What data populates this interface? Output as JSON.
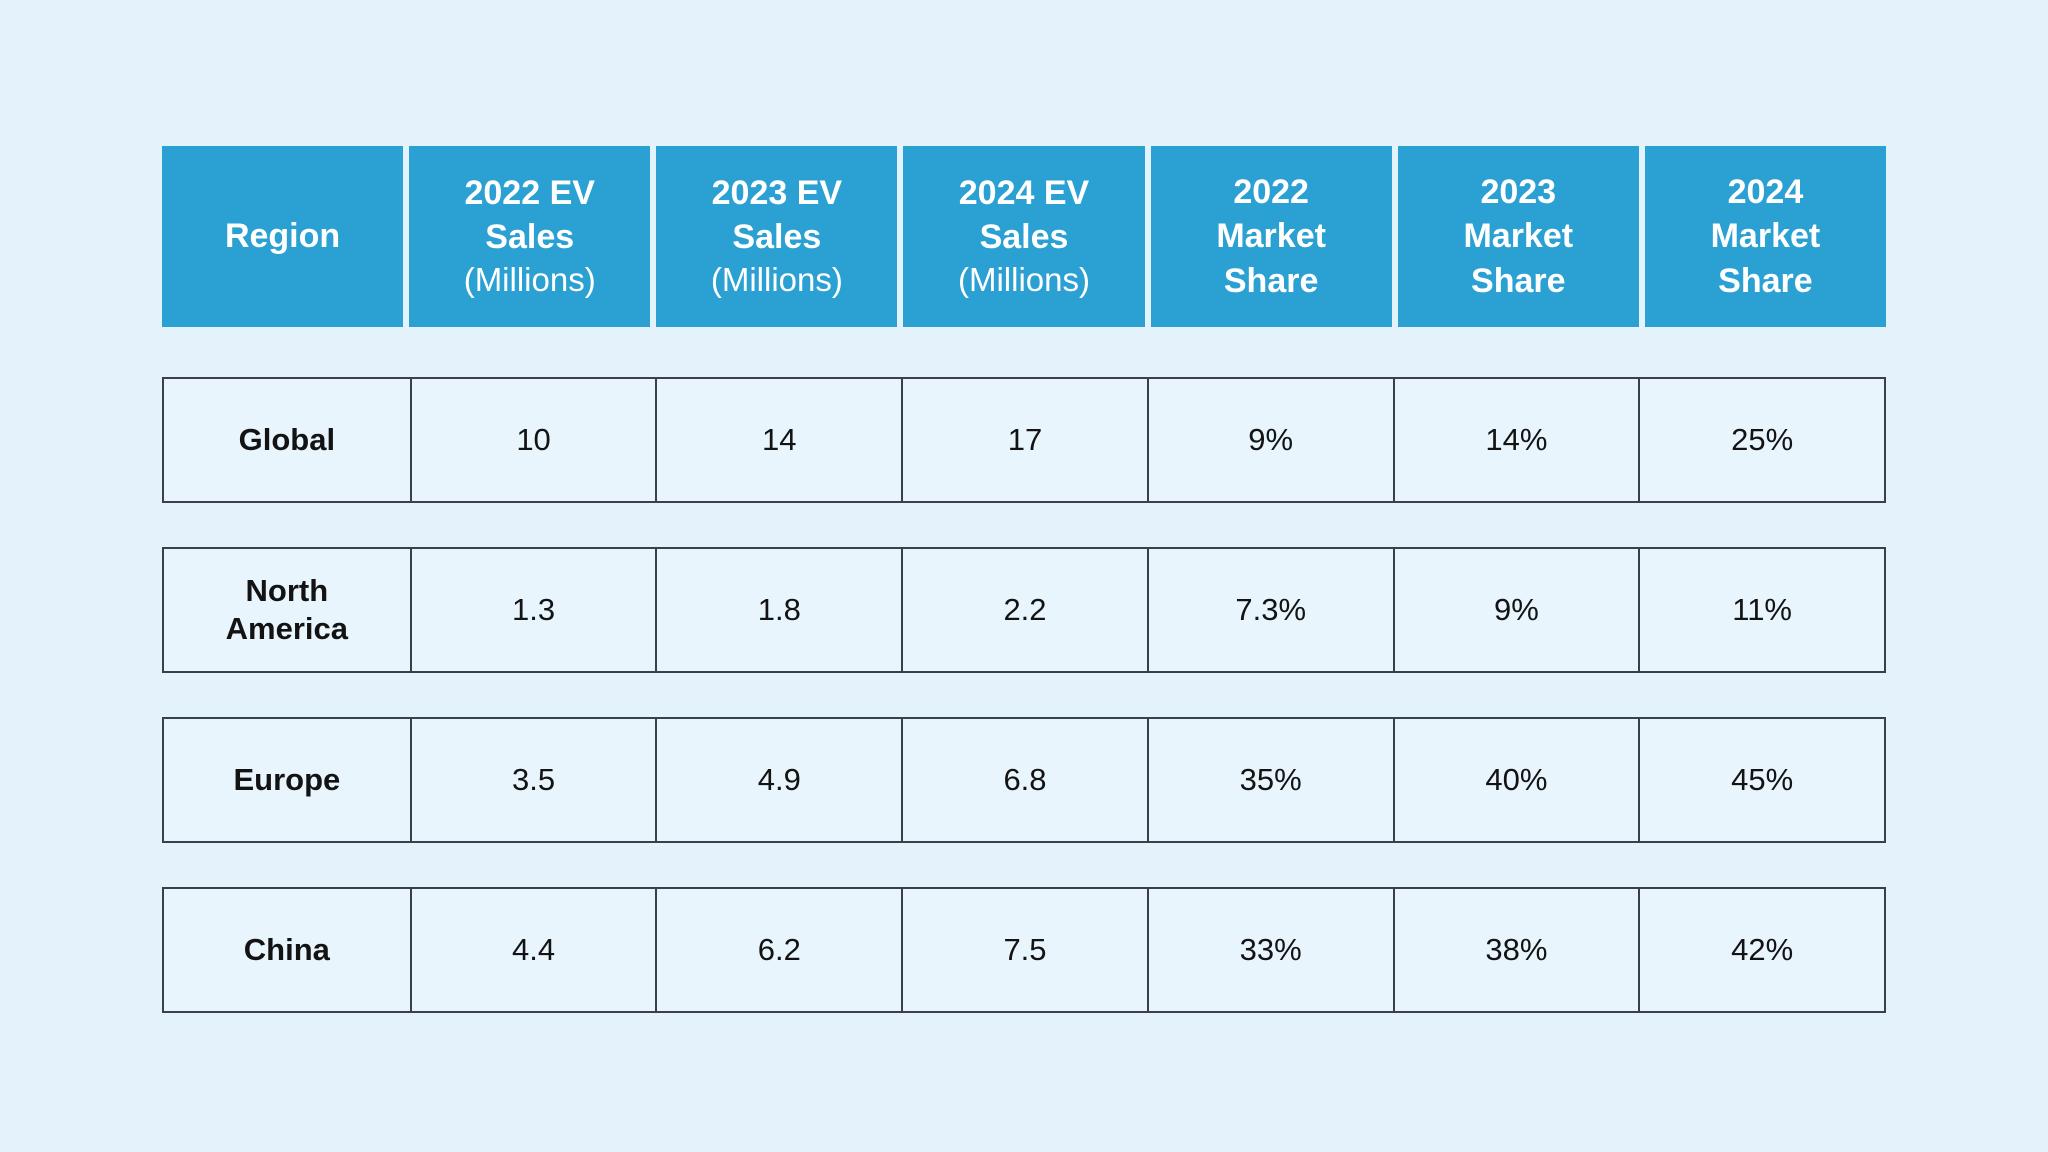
{
  "colors": {
    "page_bg": "#e4f2fb",
    "header_bg": "#2ba1d3",
    "header_text": "#ffffff",
    "cell_bg": "#e8f5fd",
    "border": "#3a4047",
    "body_text": "#131313"
  },
  "table": {
    "columns": [
      {
        "bold": "Region",
        "sub": ""
      },
      {
        "bold": "2022 EV\nSales",
        "sub": "(Millions)"
      },
      {
        "bold": "2023 EV\nSales",
        "sub": "(Millions)"
      },
      {
        "bold": "2024 EV\nSales",
        "sub": "(Millions)"
      },
      {
        "bold": "2022\nMarket\nShare",
        "sub": ""
      },
      {
        "bold": "2023\nMarket\nShare",
        "sub": ""
      },
      {
        "bold": "2024\nMarket\nShare",
        "sub": ""
      }
    ],
    "rows": [
      {
        "region": "Global",
        "values": [
          "10",
          "14",
          "17",
          "9%",
          "14%",
          "25%"
        ]
      },
      {
        "region": "North\nAmerica",
        "values": [
          "1.3",
          "1.8",
          "2.2",
          "7.3%",
          "9%",
          "11%"
        ]
      },
      {
        "region": "Europe",
        "values": [
          "3.5",
          "4.9",
          "6.8",
          "35%",
          "40%",
          "45%"
        ]
      },
      {
        "region": "China",
        "values": [
          "4.4",
          "6.2",
          "7.5",
          "33%",
          "38%",
          "42%"
        ]
      }
    ]
  },
  "chart_data": {
    "type": "table",
    "title": "",
    "columns": [
      "Region",
      "2022 EV Sales (Millions)",
      "2023 EV Sales (Millions)",
      "2024 EV Sales (Millions)",
      "2022 Market Share",
      "2023 Market Share",
      "2024 Market Share"
    ],
    "rows": [
      [
        "Global",
        10,
        14,
        17,
        "9%",
        "14%",
        "25%"
      ],
      [
        "North America",
        1.3,
        1.8,
        2.2,
        "7.3%",
        "9%",
        "11%"
      ],
      [
        "Europe",
        3.5,
        4.9,
        6.8,
        "35%",
        "40%",
        "45%"
      ],
      [
        "China",
        4.4,
        6.2,
        7.5,
        "33%",
        "38%",
        "42%"
      ]
    ]
  }
}
